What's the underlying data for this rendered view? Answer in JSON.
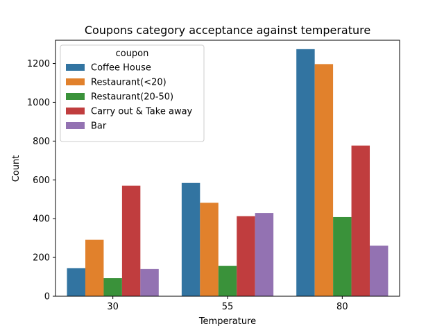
{
  "chart_data": {
    "type": "bar",
    "title": "Coupons category acceptance against temperature",
    "xlabel": "Temperature",
    "ylabel": "Count",
    "categories": [
      "30",
      "55",
      "80"
    ],
    "ylim": [
      0,
      1320
    ],
    "yticks": [
      0,
      200,
      400,
      600,
      800,
      1000,
      1200
    ],
    "grid": false,
    "legend": {
      "title": "coupon",
      "placement": "top-left"
    },
    "series": [
      {
        "name": "Coffee House",
        "color": "#3274a1",
        "values": [
          145,
          584,
          1274
        ]
      },
      {
        "name": "Restaurant(<20)",
        "color": "#e1812c",
        "values": [
          291,
          482,
          1197
        ]
      },
      {
        "name": "Restaurant(20-50)",
        "color": "#3a923a",
        "values": [
          93,
          157,
          408
        ]
      },
      {
        "name": "Carry out & Take away",
        "color": "#c03d3e",
        "values": [
          570,
          413,
          777
        ]
      },
      {
        "name": "Bar",
        "color": "#9372b2",
        "values": [
          140,
          429,
          261
        ]
      }
    ]
  }
}
